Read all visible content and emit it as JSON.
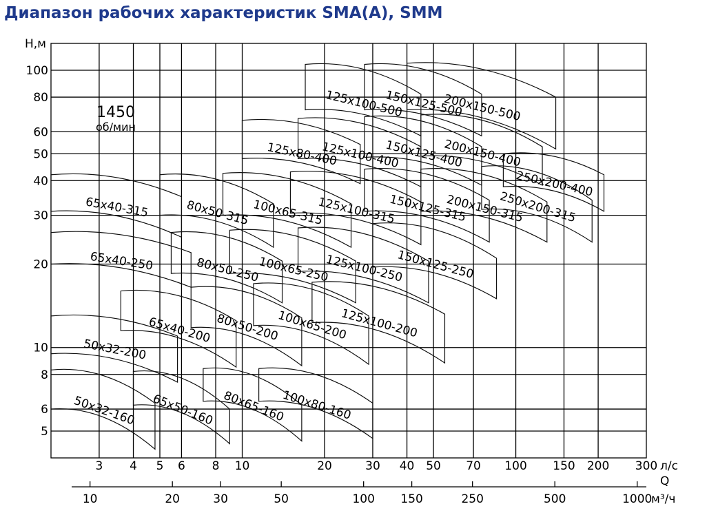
{
  "title": "Диапазон рабочих характеристик SMA(A), SMM",
  "chart_data": {
    "type": "line",
    "title": "Диапазон рабочих характеристик SMA(A), SMM",
    "ylabel": "H,м",
    "xlabel_top": "л/с",
    "xlabel_letter": "Q",
    "xlabel_bottom": "м³/ч",
    "yscale": "log",
    "xscale": "log",
    "xlim_ls": [
      2.0,
      300
    ],
    "ylim": [
      4.0,
      125
    ],
    "grid": true,
    "speed_value": "1450",
    "speed_unit": "об/мин",
    "y_ticks": [
      {
        "label": "100",
        "value": 100
      },
      {
        "label": "80",
        "value": 80
      },
      {
        "label": "60",
        "value": 60
      },
      {
        "label": "50",
        "value": 50
      },
      {
        "label": "40",
        "value": 40
      },
      {
        "label": "30",
        "value": 30
      },
      {
        "label": "20",
        "value": 20
      },
      {
        "label": "10",
        "value": 10
      },
      {
        "label": "8",
        "value": 8
      },
      {
        "label": "6",
        "value": 6
      },
      {
        "label": "5",
        "value": 5
      }
    ],
    "x_ticks_ls": [
      {
        "label": "3",
        "value": 3
      },
      {
        "label": "4",
        "value": 4
      },
      {
        "label": "5",
        "value": 5
      },
      {
        "label": "6",
        "value": 6
      },
      {
        "label": "8",
        "value": 8
      },
      {
        "label": "10",
        "value": 10
      },
      {
        "label": "20",
        "value": 20
      },
      {
        "label": "30",
        "value": 30
      },
      {
        "label": "40",
        "value": 40
      },
      {
        "label": "50",
        "value": 50
      },
      {
        "label": "70",
        "value": 70
      },
      {
        "label": "100",
        "value": 100
      },
      {
        "label": "150",
        "value": 150
      },
      {
        "label": "200",
        "value": 200
      },
      {
        "label": "300",
        "value": 300
      }
    ],
    "x_ticks_m3h": [
      {
        "label": "10",
        "value": 10
      },
      {
        "label": "20",
        "value": 20
      },
      {
        "label": "30",
        "value": 30
      },
      {
        "label": "50",
        "value": 50
      },
      {
        "label": "100",
        "value": 100
      },
      {
        "label": "150",
        "value": 150
      },
      {
        "label": "250",
        "value": 250
      },
      {
        "label": "500",
        "value": 500
      },
      {
        "label": "1000",
        "value": 1000
      }
    ],
    "series": [
      {
        "name": "50x32-160",
        "q": [
          2.0,
          4.8
        ],
        "h_top": [
          8.3,
          6.3
        ],
        "h_bottom": [
          6.0,
          4.3
        ]
      },
      {
        "name": "65x50-160",
        "q": [
          4.0,
          9.0
        ],
        "h_top": [
          8.2,
          6.0
        ],
        "h_bottom": [
          6.2,
          4.5
        ]
      },
      {
        "name": "80x65-160",
        "q": [
          7.2,
          16.5
        ],
        "h_top": [
          8.4,
          6.2
        ],
        "h_bottom": [
          6.4,
          4.6
        ]
      },
      {
        "name": "100x80-160",
        "q": [
          11.5,
          30.0
        ],
        "h_top": [
          8.4,
          6.3
        ],
        "h_bottom": [
          6.4,
          4.7
        ]
      },
      {
        "name": "50x32-200",
        "q": [
          2.0,
          5.8
        ],
        "h_top": [
          13.0,
          11.0
        ],
        "h_bottom": [
          9.5,
          7.5
        ]
      },
      {
        "name": "65x40-200",
        "q": [
          3.6,
          9.5
        ],
        "h_top": [
          16.0,
          12.5
        ],
        "h_bottom": [
          11.5,
          8.5
        ]
      },
      {
        "name": "80x50-200",
        "q": [
          6.5,
          16.5
        ],
        "h_top": [
          16.5,
          12.8
        ],
        "h_bottom": [
          11.8,
          8.6
        ]
      },
      {
        "name": "100x65-200",
        "q": [
          11.0,
          29.0
        ],
        "h_top": [
          17.0,
          13.0
        ],
        "h_bottom": [
          12.0,
          8.7
        ]
      },
      {
        "name": "125x100-200",
        "q": [
          18.0,
          55.0
        ],
        "h_top": [
          17.2,
          13.2
        ],
        "h_bottom": [
          12.3,
          8.8
        ]
      },
      {
        "name": "65x40-250",
        "q": [
          2.0,
          6.5
        ],
        "h_top": [
          26.0,
          22.0
        ],
        "h_bottom": [
          20.0,
          16.5
        ]
      },
      {
        "name": "80x50-250",
        "q": [
          5.5,
          14.0
        ],
        "h_top": [
          26.0,
          20.5
        ],
        "h_bottom": [
          18.5,
          14.5
        ]
      },
      {
        "name": "100x65-250",
        "q": [
          9.0,
          26.0
        ],
        "h_top": [
          26.5,
          20.5
        ],
        "h_bottom": [
          18.5,
          14.5
        ]
      },
      {
        "name": "125x100-250",
        "q": [
          16.0,
          48.0
        ],
        "h_top": [
          27.0,
          20.5
        ],
        "h_bottom": [
          18.8,
          14.5
        ]
      },
      {
        "name": "150x125-250",
        "q": [
          30.0,
          85.0
        ],
        "h_top": [
          28.0,
          21.0
        ],
        "h_bottom": [
          19.5,
          15.0
        ]
      },
      {
        "name": "65x40-315",
        "q": [
          2.0,
          6.0
        ],
        "h_top": [
          42.0,
          35.0
        ],
        "h_bottom": [
          31.0,
          25.0
        ]
      },
      {
        "name": "80x50-315",
        "q": [
          5.0,
          13.0
        ],
        "h_top": [
          42.0,
          33.0
        ],
        "h_bottom": [
          30.0,
          23.0
        ]
      },
      {
        "name": "100x65-315",
        "q": [
          8.5,
          25.0
        ],
        "h_top": [
          42.5,
          33.0
        ],
        "h_bottom": [
          30.0,
          23.0
        ]
      },
      {
        "name": "125x100-315",
        "q": [
          15.0,
          45.0
        ],
        "h_top": [
          43.0,
          33.5
        ],
        "h_bottom": [
          30.5,
          23.5
        ]
      },
      {
        "name": "150x125-315",
        "q": [
          28.0,
          80.0
        ],
        "h_top": [
          44.0,
          34.0
        ],
        "h_bottom": [
          31.0,
          24.0
        ]
      },
      {
        "name": "200x150-315",
        "q": [
          45.0,
          130.0
        ],
        "h_top": [
          44.0,
          33.5
        ],
        "h_bottom": [
          31.0,
          24.0
        ]
      },
      {
        "name": "250x200-315",
        "q": [
          75.0,
          190.0
        ],
        "h_top": [
          45.0,
          34.0
        ],
        "h_bottom": [
          31.5,
          24.0
        ]
      },
      {
        "name": "125x80-400",
        "q": [
          10.0,
          27.0
        ],
        "h_top": [
          66.0,
          54.0
        ],
        "h_bottom": [
          48.0,
          39.0
        ]
      },
      {
        "name": "125x100-400",
        "q": [
          16.0,
          45.0
        ],
        "h_top": [
          67.0,
          53.0
        ],
        "h_bottom": [
          48.0,
          38.0
        ]
      },
      {
        "name": "150x125-400",
        "q": [
          28.0,
          75.0
        ],
        "h_top": [
          68.0,
          53.0
        ],
        "h_bottom": [
          48.5,
          38.5
        ]
      },
      {
        "name": "200x150-400",
        "q": [
          45.0,
          125.0
        ],
        "h_top": [
          69.0,
          53.0
        ],
        "h_bottom": [
          49.0,
          38.5
        ]
      },
      {
        "name": "250x200-400",
        "q": [
          90.0,
          210.0
        ],
        "h_top": [
          50.0,
          42.0
        ],
        "h_bottom": [
          38.0,
          31.0
        ]
      },
      {
        "name": "125x100-500",
        "q": [
          17.0,
          45.0
        ],
        "h_top": [
          105.0,
          82.0
        ],
        "h_bottom": [
          72.0,
          58.0
        ]
      },
      {
        "name": "150x125-500",
        "q": [
          28.0,
          75.0
        ],
        "h_top": [
          105.0,
          82.0
        ],
        "h_bottom": [
          72.0,
          58.0
        ]
      },
      {
        "name": "200x150-500",
        "q": [
          40.0,
          140.0
        ],
        "h_top": [
          106.0,
          80.0
        ],
        "h_bottom": [
          72.0,
          52.0
        ]
      }
    ]
  }
}
